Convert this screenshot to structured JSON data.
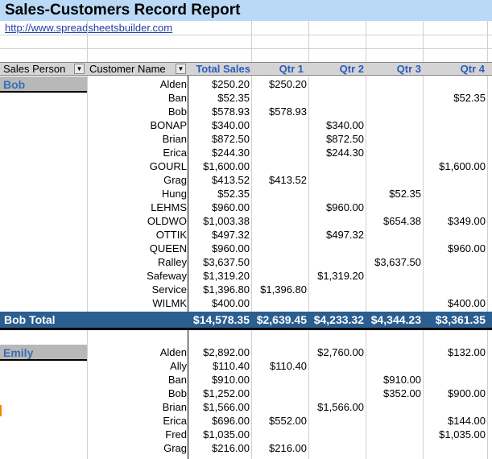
{
  "title": "Sales-Customers Record Report",
  "link": "http://www.spreadsheetsbuilder.com",
  "headers": {
    "sales_person": "Sales Person",
    "customer_name": "Customer Name",
    "total_sales": "Total Sales",
    "qtr1": "Qtr 1",
    "qtr2": "Qtr 2",
    "qtr3": "Qtr 3",
    "qtr4": "Qtr 4",
    "filter_glyph": "▼"
  },
  "groups": [
    {
      "name": "Bob",
      "rows": [
        {
          "customer": "Alden",
          "total": "$250.20",
          "q1": "$250.20",
          "q2": "",
          "q3": "",
          "q4": ""
        },
        {
          "customer": "Ban",
          "total": "$52.35",
          "q1": "",
          "q2": "",
          "q3": "",
          "q4": "$52.35"
        },
        {
          "customer": "Bob",
          "total": "$578.93",
          "q1": "$578.93",
          "q2": "",
          "q3": "",
          "q4": ""
        },
        {
          "customer": "BONAP",
          "total": "$340.00",
          "q1": "",
          "q2": "$340.00",
          "q3": "",
          "q4": ""
        },
        {
          "customer": "Brian",
          "total": "$872.50",
          "q1": "",
          "q2": "$872.50",
          "q3": "",
          "q4": ""
        },
        {
          "customer": "Erica",
          "total": "$244.30",
          "q1": "",
          "q2": "$244.30",
          "q3": "",
          "q4": ""
        },
        {
          "customer": "GOURL",
          "total": "$1,600.00",
          "q1": "",
          "q2": "",
          "q3": "",
          "q4": "$1,600.00"
        },
        {
          "customer": "Grag",
          "total": "$413.52",
          "q1": "$413.52",
          "q2": "",
          "q3": "",
          "q4": ""
        },
        {
          "customer": "Hung",
          "total": "$52.35",
          "q1": "",
          "q2": "",
          "q3": "$52.35",
          "q4": ""
        },
        {
          "customer": "LEHMS",
          "total": "$960.00",
          "q1": "",
          "q2": "$960.00",
          "q3": "",
          "q4": ""
        },
        {
          "customer": "OLDWO",
          "total": "$1,003.38",
          "q1": "",
          "q2": "",
          "q3": "$654.38",
          "q4": "$349.00"
        },
        {
          "customer": "OTTIK",
          "total": "$497.32",
          "q1": "",
          "q2": "$497.32",
          "q3": "",
          "q4": ""
        },
        {
          "customer": "QUEEN",
          "total": "$960.00",
          "q1": "",
          "q2": "",
          "q3": "",
          "q4": "$960.00"
        },
        {
          "customer": "Ralley",
          "total": "$3,637.50",
          "q1": "",
          "q2": "",
          "q3": "$3,637.50",
          "q4": ""
        },
        {
          "customer": "Safeway",
          "total": "$1,319.20",
          "q1": "",
          "q2": "$1,319.20",
          "q3": "",
          "q4": ""
        },
        {
          "customer": "Service",
          "total": "$1,396.80",
          "q1": "$1,396.80",
          "q2": "",
          "q3": "",
          "q4": ""
        },
        {
          "customer": "WILMK",
          "total": "$400.00",
          "q1": "",
          "q2": "",
          "q3": "",
          "q4": "$400.00"
        }
      ],
      "total": {
        "label": "Bob Total",
        "total": "$14,578.35",
        "q1": "$2,639.45",
        "q2": "$4,233.32",
        "q3": "$4,344.23",
        "q4": "$3,361.35"
      }
    },
    {
      "name": "Emily",
      "rows": [
        {
          "customer": "Alden",
          "total": "$2,892.00",
          "q1": "",
          "q2": "$2,760.00",
          "q3": "",
          "q4": "$132.00"
        },
        {
          "customer": "Ally",
          "total": "$110.40",
          "q1": "$110.40",
          "q2": "",
          "q3": "",
          "q4": ""
        },
        {
          "customer": "Ban",
          "total": "$910.00",
          "q1": "",
          "q2": "",
          "q3": "$910.00",
          "q4": ""
        },
        {
          "customer": "Bob",
          "total": "$1,252.00",
          "q1": "",
          "q2": "",
          "q3": "$352.00",
          "q4": "$900.00"
        },
        {
          "customer": "Brian",
          "total": "$1,566.00",
          "q1": "",
          "q2": "$1,566.00",
          "q3": "",
          "q4": ""
        },
        {
          "customer": "Erica",
          "total": "$696.00",
          "q1": "$552.00",
          "q2": "",
          "q3": "",
          "q4": "$144.00"
        },
        {
          "customer": "Fred",
          "total": "$1,035.00",
          "q1": "",
          "q2": "",
          "q3": "",
          "q4": "$1,035.00"
        },
        {
          "customer": "Grag",
          "total": "$216.00",
          "q1": "$216.00",
          "q2": "",
          "q3": "",
          "q4": ""
        }
      ]
    }
  ]
}
